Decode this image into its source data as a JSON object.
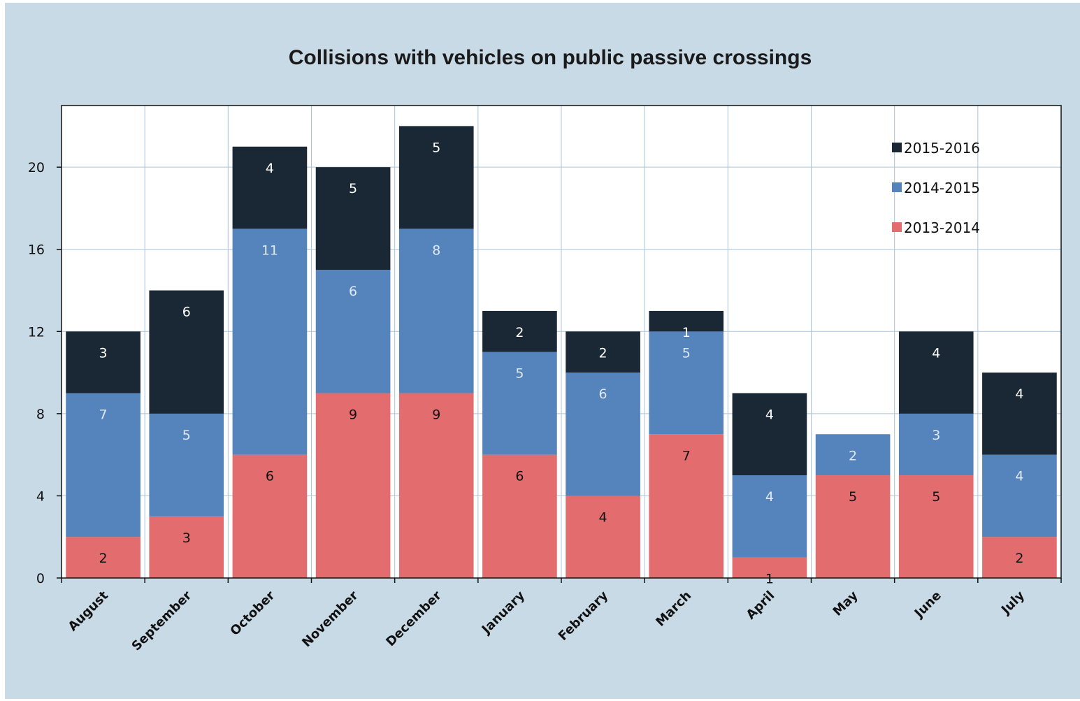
{
  "chart_data": {
    "type": "bar",
    "stacked": true,
    "title": "Collisions with vehicles on public passive crossings",
    "xlabel": "",
    "ylabel": "",
    "ylim": [
      0,
      23
    ],
    "yticks": [
      0,
      4,
      8,
      12,
      16,
      20
    ],
    "grid": true,
    "legend_position": "top-right",
    "categories": [
      "August",
      "September",
      "October",
      "November",
      "December",
      "January",
      "February",
      "March",
      "April",
      "May",
      "June",
      "July"
    ],
    "series": [
      {
        "name": "2013-2014",
        "color": "#e36c6e",
        "label_color": "#111111",
        "values": [
          2,
          3,
          6,
          9,
          9,
          6,
          4,
          7,
          1,
          5,
          5,
          2
        ]
      },
      {
        "name": "2014-2015",
        "color": "#5583bb",
        "label_color": "#dfe8f4",
        "values": [
          7,
          5,
          11,
          6,
          8,
          5,
          6,
          5,
          4,
          2,
          3,
          4
        ]
      },
      {
        "name": "2015-2016",
        "color": "#1a2734",
        "label_color": "#ffffff",
        "values": [
          3,
          6,
          4,
          5,
          5,
          2,
          2,
          1,
          4,
          0,
          4,
          4
        ]
      }
    ],
    "legend_order": [
      "2015-2016",
      "2014-2015",
      "2013-2014"
    ]
  }
}
